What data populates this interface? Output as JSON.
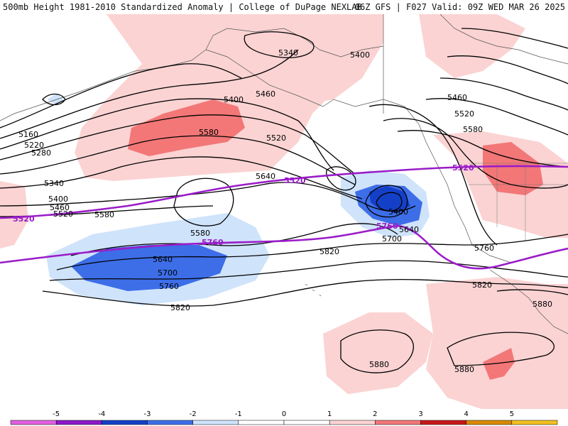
{
  "header": {
    "left_title": "500mb Height 1981-2010 Standardized Anomaly | College of DuPage NEXLAB",
    "right_title": "06Z GFS | F027 Valid: 09Z WED MAR 26 2025"
  },
  "colors": {
    "anomaly_pos1": "#fbd3d3",
    "anomaly_pos2": "#f37777",
    "anomaly_neg1": "#cfe3fb",
    "anomaly_neg2": "#3d6ee8",
    "anomaly_neg3": "#1440c8",
    "contour": "#000000",
    "highlight_contour": "#9a1cc8"
  },
  "contour_labels": [
    {
      "id": "5340-a",
      "text": "5340"
    },
    {
      "id": "5400-a",
      "text": "5400"
    },
    {
      "id": "5460-a",
      "text": "5460"
    },
    {
      "id": "5400-b",
      "text": "5400"
    },
    {
      "id": "5580-a",
      "text": "5580"
    },
    {
      "id": "5520-a",
      "text": "5520"
    },
    {
      "id": "5160",
      "text": "5160"
    },
    {
      "id": "5220",
      "text": "5220"
    },
    {
      "id": "5280",
      "text": "5280"
    },
    {
      "id": "5340-b",
      "text": "5340"
    },
    {
      "id": "5400-c",
      "text": "5400"
    },
    {
      "id": "5460-b",
      "text": "5460"
    },
    {
      "id": "5520-b",
      "text": "5520"
    },
    {
      "id": "5580-b",
      "text": "5580"
    },
    {
      "id": "5640-a",
      "text": "5640"
    },
    {
      "id": "5580-c",
      "text": "5580"
    },
    {
      "id": "5640-b",
      "text": "5640"
    },
    {
      "id": "5700-a",
      "text": "5700"
    },
    {
      "id": "5760-a",
      "text": "5760"
    },
    {
      "id": "5820-a",
      "text": "5820"
    },
    {
      "id": "5460-c",
      "text": "5460"
    },
    {
      "id": "5520-c",
      "text": "5520"
    },
    {
      "id": "5580-d",
      "text": "5580"
    },
    {
      "id": "5400-d",
      "text": "5400"
    },
    {
      "id": "5640-c",
      "text": "5640"
    },
    {
      "id": "5700-b",
      "text": "5700"
    },
    {
      "id": "5760-b",
      "text": "5760"
    },
    {
      "id": "5820-b",
      "text": "5820"
    },
    {
      "id": "5820-c",
      "text": "5820"
    },
    {
      "id": "5880-a",
      "text": "5880"
    },
    {
      "id": "5880-b",
      "text": "5880"
    },
    {
      "id": "5880-c",
      "text": "5880"
    }
  ],
  "highlight_labels": [
    {
      "id": "p5520-w",
      "text": "5520"
    },
    {
      "id": "p5520-m",
      "text": "5520"
    },
    {
      "id": "p5520-e",
      "text": "5520"
    },
    {
      "id": "p5760-w",
      "text": "5760"
    },
    {
      "id": "p5760-e",
      "text": "5760"
    }
  ],
  "colorbar": {
    "ticks": [
      "-5",
      "-4",
      "-3",
      "-2",
      "-1",
      "0",
      "1",
      "2",
      "3",
      "4",
      "5"
    ],
    "colors": [
      "#e060e0",
      "#8a18c8",
      "#1440c8",
      "#3d6ee8",
      "#cfe3fb",
      "#ffffff",
      "#ffffff",
      "#fbd3d3",
      "#f37777",
      "#c81818",
      "#d88a00",
      "#f2c020"
    ]
  }
}
